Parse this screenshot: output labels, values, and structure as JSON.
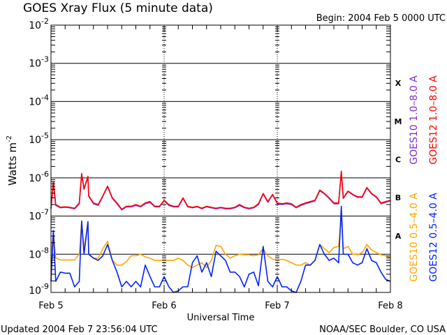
{
  "header": {
    "title": "GOES Xray Flux (5 minute data)",
    "begin": "Begin:  2004 Feb 5 0000 UTC"
  },
  "footer": {
    "updated": "Updated 2004 Feb  7 23:56:04 UTC",
    "credit": "NOAA/SEC Boulder, CO USA"
  },
  "chart_data": {
    "type": "line",
    "title": "GOES Xray Flux (5 minute data)",
    "xlabel": "Universal Time",
    "ylabel": "Watts m",
    "ylabel_exponent": "-2",
    "y_scale": "log",
    "ylim": [
      1e-09,
      0.01
    ],
    "xlim": [
      "2004-02-05 00:00",
      "2004-02-08 00:00"
    ],
    "x_tick_labels": [
      {
        "t": "2004-02-05 00:00",
        "label": "Feb 5"
      },
      {
        "t": "2004-02-06 00:00",
        "label": "Feb 6"
      },
      {
        "t": "2004-02-07 00:00",
        "label": "Feb 7"
      },
      {
        "t": "2004-02-08 00:00",
        "label": "Feb 8"
      }
    ],
    "y_ticks": [
      {
        "value": 0.01,
        "base": "10",
        "exp": "-2"
      },
      {
        "value": 0.001,
        "base": "10",
        "exp": "-3"
      },
      {
        "value": 0.0001,
        "base": "10",
        "exp": "-4"
      },
      {
        "value": 1e-05,
        "base": "10",
        "exp": "-5"
      },
      {
        "value": 1e-06,
        "base": "10",
        "exp": "-6"
      },
      {
        "value": 1e-07,
        "base": "10",
        "exp": "-7"
      },
      {
        "value": 1e-08,
        "base": "10",
        "exp": "-8"
      },
      {
        "value": 1e-09,
        "base": "10",
        "exp": "-9"
      }
    ],
    "flare_classes": [
      {
        "label": "X",
        "min": 0.0001,
        "max": 0.001
      },
      {
        "label": "M",
        "min": 1e-05,
        "max": 0.0001
      },
      {
        "label": "C",
        "min": 1e-06,
        "max": 1e-05
      },
      {
        "label": "B",
        "min": 1e-07,
        "max": 1e-06
      },
      {
        "label": "A",
        "min": 1e-08,
        "max": 1e-07
      }
    ],
    "grid": "horizontal lines at each decade, dashed vertical lines at day boundaries",
    "legend_placement": "right, vertical",
    "x": [
      "2004-02-05 00:00",
      "2004-02-05 01:00",
      "2004-02-05 02:00",
      "2004-02-05 03:00",
      "2004-02-05 04:00",
      "2004-02-05 05:00",
      "2004-02-05 06:00",
      "2004-02-05 07:00",
      "2004-02-05 08:00",
      "2004-02-05 09:00",
      "2004-02-05 10:00",
      "2004-02-05 11:00",
      "2004-02-05 12:00",
      "2004-02-05 13:00",
      "2004-02-05 14:00",
      "2004-02-05 15:00",
      "2004-02-05 16:00",
      "2004-02-05 17:00",
      "2004-02-05 18:00",
      "2004-02-05 19:00",
      "2004-02-05 20:00",
      "2004-02-05 21:00",
      "2004-02-05 22:00",
      "2004-02-05 23:00",
      "2004-02-06 00:00",
      "2004-02-06 01:00",
      "2004-02-06 02:00",
      "2004-02-06 03:00",
      "2004-02-06 04:00",
      "2004-02-06 05:00",
      "2004-02-06 06:00",
      "2004-02-06 07:00",
      "2004-02-06 08:00",
      "2004-02-06 09:00",
      "2004-02-06 10:00",
      "2004-02-06 11:00",
      "2004-02-06 12:00",
      "2004-02-06 13:00",
      "2004-02-06 14:00",
      "2004-02-06 15:00",
      "2004-02-06 16:00",
      "2004-02-06 17:00",
      "2004-02-06 18:00",
      "2004-02-06 19:00",
      "2004-02-06 20:00",
      "2004-02-06 21:00",
      "2004-02-06 22:00",
      "2004-02-06 23:00",
      "2004-02-07 00:00",
      "2004-02-07 01:00",
      "2004-02-07 02:00",
      "2004-02-07 03:00",
      "2004-02-07 04:00",
      "2004-02-07 05:00",
      "2004-02-07 06:00",
      "2004-02-07 07:00",
      "2004-02-07 08:00",
      "2004-02-07 09:00",
      "2004-02-07 10:00",
      "2004-02-07 11:00",
      "2004-02-07 12:00",
      "2004-02-07 13:00",
      "2004-02-07 14:00",
      "2004-02-07 15:00",
      "2004-02-07 16:00",
      "2004-02-07 17:00",
      "2004-02-07 18:00",
      "2004-02-07 19:00",
      "2004-02-07 20:00",
      "2004-02-07 21:00",
      "2004-02-07 22:00",
      "2004-02-07 23:00",
      "2004-02-08 00:00"
    ],
    "series": [
      {
        "name": "GOES10 1.0-8.0 A",
        "color": "#7b2fd6",
        "values": [
          1.55e-07,
          1.9e-07,
          1.65e-07,
          1.7e-07,
          1.65e-07,
          1.55e-07,
          2.1e-07,
          5e-07,
          3.3e-07,
          2.1e-07,
          1.9e-07,
          3.3e-07,
          5.9e-07,
          2.9e-07,
          2.1e-07,
          1.45e-07,
          1.75e-07,
          1.75e-07,
          1.9e-07,
          1.75e-07,
          2.1e-07,
          2.3e-07,
          1.75e-07,
          1.75e-07,
          2.5e-07,
          1.9e-07,
          1.75e-07,
          1.75e-07,
          2.9e-07,
          1.75e-07,
          1.65e-07,
          1.75e-07,
          1.55e-07,
          1.75e-07,
          1.65e-07,
          1.55e-07,
          1.65e-07,
          1.55e-07,
          1.55e-07,
          1.65e-07,
          1.9e-07,
          1.65e-07,
          1.55e-07,
          1.65e-07,
          2e-07,
          3.8e-07,
          2.3e-07,
          3.6e-07,
          2.1e-07,
          2e-07,
          2.1e-07,
          2e-07,
          1.65e-07,
          1.9e-07,
          2.1e-07,
          2.3e-07,
          2.5e-07,
          4.6e-07,
          3.8e-07,
          2.9e-07,
          2.1e-07,
          2.1e-07,
          2.9e-07,
          4.4e-07,
          3.6e-07,
          3.1e-07,
          3.1e-07,
          5.4e-07,
          3.8e-07,
          3.1e-07,
          2.1e-07,
          2.3e-07,
          2.5e-07
        ],
        "peaks": [
          {
            "t": "2004-02-05 00:30",
            "v": 7.5e-07
          },
          {
            "t": "2004-02-05 06:30",
            "v": 1.2e-06
          },
          {
            "t": "2004-02-05 07:50",
            "v": 1.05e-06
          },
          {
            "t": "2004-02-07 13:35",
            "v": 1.4e-06
          }
        ]
      },
      {
        "name": "GOES12 1.0-8.0 A",
        "color": "#ff0000",
        "values": [
          1.6e-07,
          2e-07,
          1.7e-07,
          1.75e-07,
          1.7e-07,
          1.6e-07,
          2.2e-07,
          5.2e-07,
          3.4e-07,
          2.2e-07,
          2e-07,
          3.4e-07,
          6.1e-07,
          3e-07,
          2.2e-07,
          1.5e-07,
          1.8e-07,
          1.8e-07,
          2e-07,
          1.8e-07,
          2.2e-07,
          2.4e-07,
          1.8e-07,
          1.8e-07,
          2.6e-07,
          2e-07,
          1.8e-07,
          1.8e-07,
          3e-07,
          1.8e-07,
          1.7e-07,
          1.8e-07,
          1.6e-07,
          1.8e-07,
          1.7e-07,
          1.6e-07,
          1.7e-07,
          1.6e-07,
          1.6e-07,
          1.7e-07,
          2e-07,
          1.7e-07,
          1.6e-07,
          1.7e-07,
          2.1e-07,
          3.9e-07,
          2.4e-07,
          3.7e-07,
          2.2e-07,
          2.1e-07,
          2.2e-07,
          2.1e-07,
          1.7e-07,
          2e-07,
          2.2e-07,
          2.4e-07,
          2.6e-07,
          4.8e-07,
          3.9e-07,
          3e-07,
          2.2e-07,
          2.2e-07,
          3e-07,
          4.5e-07,
          3.7e-07,
          3.2e-07,
          3.2e-07,
          5.6e-07,
          3.9e-07,
          3.2e-07,
          2.2e-07,
          2.4e-07,
          2.6e-07
        ],
        "peaks": [
          {
            "t": "2004-02-05 00:30",
            "v": 8e-07
          },
          {
            "t": "2004-02-05 06:30",
            "v": 1.3e-06
          },
          {
            "t": "2004-02-05 07:50",
            "v": 1.1e-06
          },
          {
            "t": "2004-02-07 13:35",
            "v": 1.5e-06
          }
        ]
      },
      {
        "name": "GOES10 0.5-4.0 A",
        "color": "#ffa500",
        "values": [
          9.1e-09,
          7.9e-09,
          7.1e-09,
          7.1e-09,
          7.1e-09,
          7.1e-09,
          1e-08,
          1.4e-08,
          1e-08,
          7.9e-09,
          7.9e-09,
          1.4e-08,
          2.2e-08,
          6.9e-09,
          5.2e-09,
          5.2e-09,
          6.4e-09,
          9.1e-09,
          9.1e-09,
          1e-08,
          8.5e-09,
          7.9e-09,
          6.9e-09,
          6.9e-09,
          6.9e-09,
          6.9e-09,
          6.9e-09,
          7.9e-09,
          6.9e-09,
          5.2e-09,
          4.5e-09,
          5.2e-09,
          6e-09,
          4.5e-09,
          6.9e-09,
          1.7e-08,
          1.6e-08,
          1e-08,
          7.9e-09,
          9.1e-09,
          1e-08,
          9.7e-09,
          9.7e-09,
          9.1e-09,
          9.7e-09,
          1.4e-08,
          9.1e-09,
          7.4e-09,
          6.9e-09,
          7.4e-09,
          6.9e-09,
          6e-09,
          5.2e-09,
          5.2e-09,
          6e-09,
          5.2e-09,
          6.9e-09,
          1.8e-08,
          1.4e-08,
          1.1e-08,
          1.5e-08,
          1.6e-08,
          1.4e-08,
          1.6e-08,
          1e-08,
          9.7e-09,
          1.1e-08,
          1.8e-08,
          1.3e-08,
          1.1e-08,
          9.7e-09,
          9.1e-09,
          7.9e-09
        ],
        "peaks": [
          {
            "t": "2004-02-05 00:30",
            "v": 3.7e-08
          },
          {
            "t": "2004-02-05 06:30",
            "v": 7e-08
          },
          {
            "t": "2004-02-05 07:50",
            "v": 6.5e-08
          },
          {
            "t": "2004-02-07 13:35",
            "v": 9e-08
          }
        ]
      },
      {
        "name": "GOES12 0.5-4.0 A",
        "color": "#0022ff",
        "values": [
          1.95e-09,
          1.95e-09,
          3.4e-09,
          3.2e-09,
          3.2e-09,
          1.4e-09,
          1.95e-09,
          1e-08,
          1e-08,
          7.9e-09,
          6.9e-09,
          9.1e-09,
          1.8e-08,
          6.9e-09,
          3.4e-09,
          1.4e-09,
          1.95e-09,
          1.4e-09,
          1.95e-09,
          1.4e-09,
          5.2e-09,
          2.6e-09,
          1.4e-09,
          1.4e-09,
          2.6e-09,
          1.4e-09,
          1e-09,
          1.1e-09,
          1.4e-09,
          1.4e-09,
          6e-09,
          9.1e-09,
          3.4e-09,
          6e-09,
          2.6e-09,
          1.2e-08,
          9.1e-09,
          6.9e-09,
          3.4e-09,
          3.4e-09,
          2.6e-09,
          1.4e-09,
          3e-09,
          3.4e-09,
          1.5e-09,
          1.6e-08,
          1.95e-09,
          1.4e-09,
          2.6e-09,
          1.4e-09,
          1.4e-09,
          1.1e-09,
          1e-09,
          1.95e-09,
          5.2e-09,
          5.2e-09,
          6.9e-09,
          1.8e-08,
          1e-08,
          6.9e-09,
          7.9e-09,
          6e-09,
          1e-08,
          1e-08,
          6e-09,
          5.2e-09,
          6e-09,
          1.4e-08,
          6.9e-09,
          6e-09,
          3.4e-09,
          2.2e-09,
          1.95e-09
        ],
        "peaks": [
          {
            "t": "2004-02-05 00:30",
            "v": 4.2e-08
          },
          {
            "t": "2004-02-05 06:30",
            "v": 7.4e-08
          },
          {
            "t": "2004-02-05 07:50",
            "v": 7.1e-08
          },
          {
            "t": "2004-02-07 13:35",
            "v": 1.8e-07
          }
        ]
      }
    ]
  }
}
